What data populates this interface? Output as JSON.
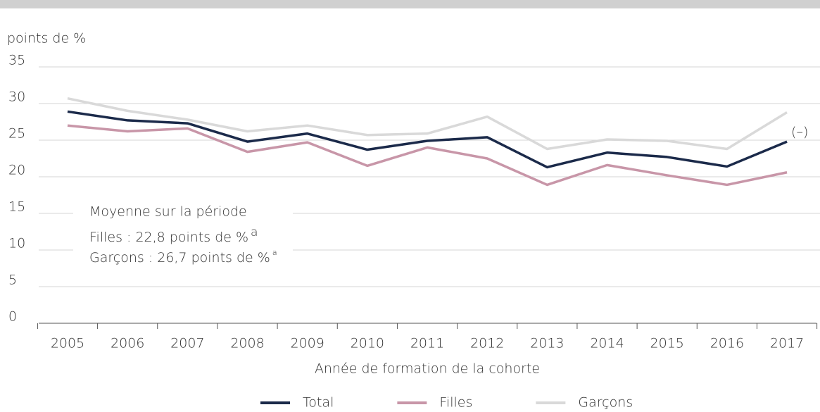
{
  "chart_data": {
    "type": "line",
    "y_label": "points de %",
    "x_label": "Année de formation de la cohorte",
    "categories": [
      "2005",
      "2006",
      "2007",
      "2008",
      "2009",
      "2010",
      "2011",
      "2012",
      "2013",
      "2014",
      "2015",
      "2016",
      "2017"
    ],
    "series": [
      {
        "name": "Total",
        "color": "#1b2a4a",
        "values": [
          28.9,
          27.7,
          27.3,
          24.8,
          25.9,
          23.7,
          24.9,
          25.4,
          21.3,
          23.3,
          22.7,
          21.4,
          24.8
        ]
      },
      {
        "name": "Filles",
        "color": "#c896a8",
        "values": [
          27.0,
          26.2,
          26.6,
          23.4,
          24.7,
          21.5,
          24.0,
          22.5,
          18.9,
          21.6,
          20.2,
          18.9,
          20.6
        ]
      },
      {
        "name": "Garçons",
        "color": "#d9d9d9",
        "values": [
          30.7,
          29.0,
          27.8,
          26.2,
          27.0,
          25.7,
          25.9,
          28.2,
          23.8,
          25.1,
          24.9,
          23.8,
          28.8
        ]
      }
    ],
    "ylim": [
      0,
      35
    ],
    "yticks": [
      0,
      5,
      10,
      15,
      20,
      25,
      30,
      35
    ],
    "grid": true,
    "annotations": {
      "end_label": "(–)",
      "box_title": "Moyenne sur la période",
      "box_line1": "Filles : 22,8 points de %",
      "box_line2": "Garçons : 26,7 points de %",
      "note_mark": "a"
    }
  }
}
